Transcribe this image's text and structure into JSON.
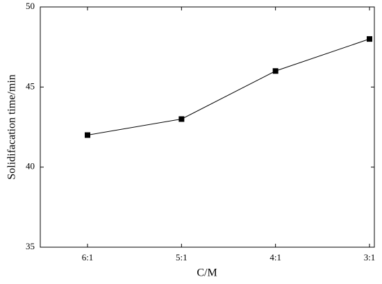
{
  "chart_data": {
    "type": "line",
    "x_label": "C/M",
    "y_label": "Solidifacation time/min",
    "categories": [
      "6:1",
      "5:1",
      "4:1",
      "3:1"
    ],
    "values": [
      42,
      43,
      46,
      48
    ],
    "color": "#000000",
    "ylim": [
      35,
      50
    ],
    "yticks": [
      35,
      40,
      45,
      50
    ],
    "grid": false
  }
}
